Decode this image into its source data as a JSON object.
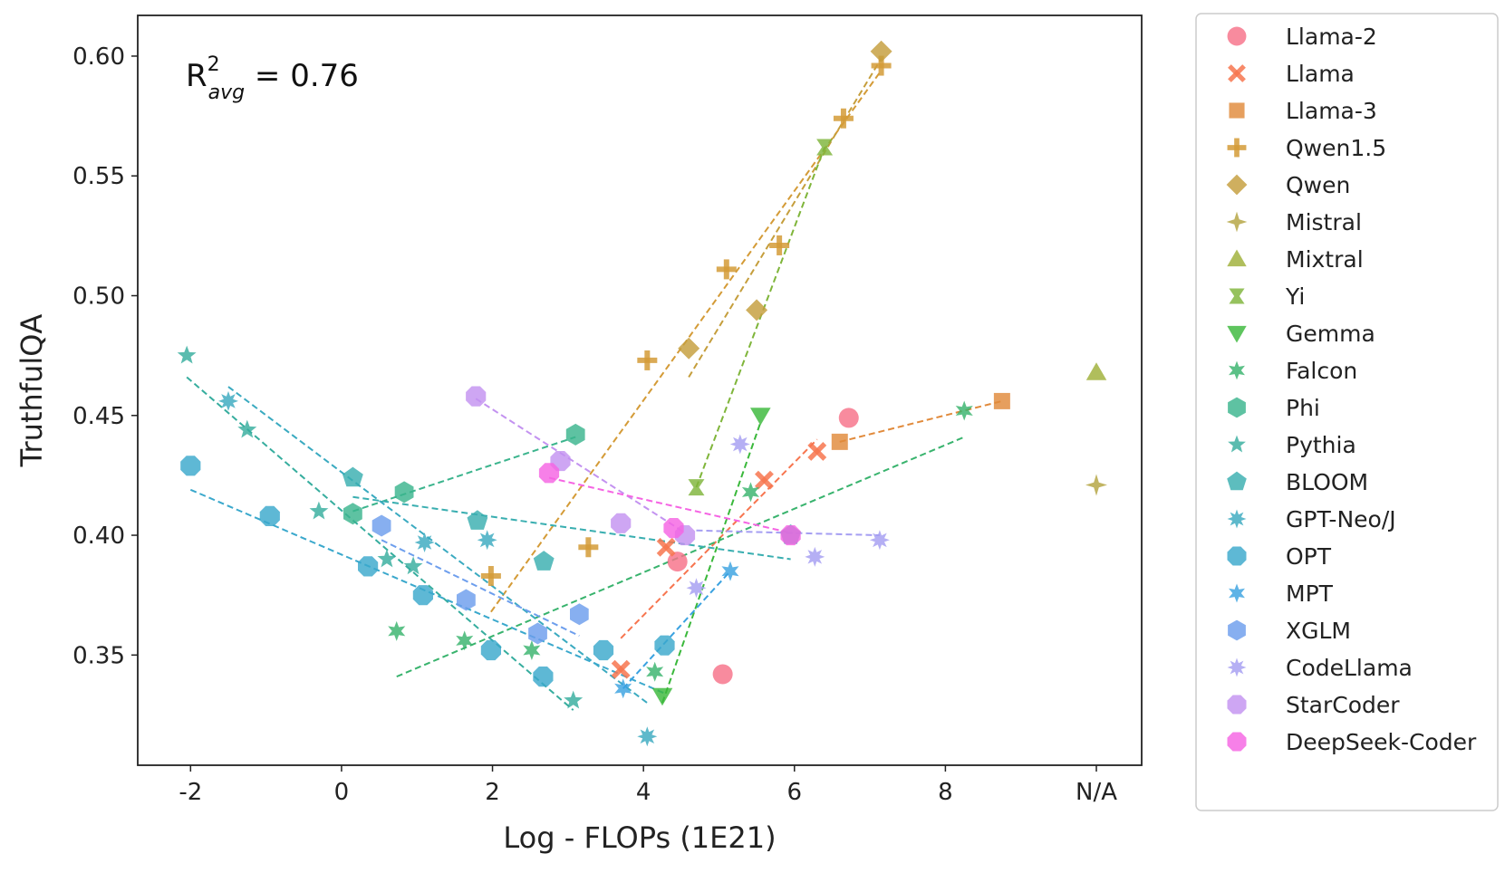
{
  "chart_data": {
    "type": "scatter",
    "title": "",
    "xlabel": "Log - FLOPs (1E21)",
    "ylabel": "TruthfulQA",
    "xlim": [
      -2.7,
      10.6
    ],
    "ylim": [
      0.304,
      0.617
    ],
    "xticks": [
      -2,
      0,
      2,
      4,
      6,
      8,
      10
    ],
    "xtick_labels": [
      "-2",
      "0",
      "2",
      "4",
      "6",
      "8",
      "N/A"
    ],
    "yticks": [
      0.35,
      0.4,
      0.45,
      0.5,
      0.55,
      0.6
    ],
    "ytick_labels": [
      "0.35",
      "0.40",
      "0.45",
      "0.50",
      "0.55",
      "0.60"
    ],
    "annotation": {
      "base": "R",
      "sup": "2",
      "sub": "avg",
      "value": " = 0.76"
    },
    "legend_position": "outside-right",
    "series": [
      {
        "name": "Llama-2",
        "color": "#f77189",
        "marker": "circle",
        "points": [
          [
            4.45,
            0.389
          ],
          [
            5.05,
            0.342
          ],
          [
            6.72,
            0.449
          ]
        ],
        "fit": null
      },
      {
        "name": "Llama",
        "color": "#f7754f",
        "marker": "x",
        "points": [
          [
            3.7,
            0.344
          ],
          [
            4.3,
            0.395
          ],
          [
            5.6,
            0.423
          ],
          [
            6.3,
            0.435
          ]
        ],
        "fit": [
          [
            3.7,
            0.357
          ],
          [
            6.3,
            0.44
          ]
        ]
      },
      {
        "name": "Llama-3",
        "color": "#e18a3b",
        "marker": "square",
        "points": [
          [
            6.6,
            0.439
          ],
          [
            8.75,
            0.456
          ]
        ],
        "fit": [
          [
            6.6,
            0.439
          ],
          [
            8.75,
            0.456
          ]
        ]
      },
      {
        "name": "Qwen1.5",
        "color": "#d49b37",
        "marker": "plus",
        "points": [
          [
            1.98,
            0.383
          ],
          [
            3.27,
            0.395
          ],
          [
            4.05,
            0.473
          ],
          [
            5.1,
            0.511
          ],
          [
            5.8,
            0.521
          ],
          [
            6.65,
            0.574
          ],
          [
            7.15,
            0.596
          ]
        ],
        "fit": [
          [
            1.98,
            0.368
          ],
          [
            7.15,
            0.594
          ]
        ]
      },
      {
        "name": "Qwen",
        "color": "#c59e3c",
        "marker": "diamond",
        "points": [
          [
            4.6,
            0.478
          ],
          [
            5.5,
            0.494
          ],
          [
            7.15,
            0.602
          ]
        ],
        "fit": [
          [
            4.6,
            0.466
          ],
          [
            7.15,
            0.599
          ]
        ]
      },
      {
        "name": "Mistral",
        "color": "#b3a43f",
        "marker": "star4",
        "points": [
          [
            10.0,
            0.421
          ]
        ],
        "fit": null
      },
      {
        "name": "Mixtral",
        "color": "#9fb038",
        "marker": "triangle",
        "points": [
          [
            10.0,
            0.468
          ]
        ],
        "fit": null
      },
      {
        "name": "Yi",
        "color": "#7fb53a",
        "marker": "bowtie",
        "points": [
          [
            4.7,
            0.42
          ],
          [
            6.4,
            0.562
          ]
        ],
        "fit": [
          [
            4.7,
            0.42
          ],
          [
            6.4,
            0.562
          ]
        ]
      },
      {
        "name": "Gemma",
        "color": "#3ab83b",
        "marker": "triangle-down",
        "points": [
          [
            4.25,
            0.333
          ],
          [
            5.55,
            0.45
          ]
        ],
        "fit": [
          [
            4.25,
            0.33
          ],
          [
            5.55,
            0.447
          ]
        ]
      },
      {
        "name": "Falcon",
        "color": "#38b36d",
        "marker": "star6",
        "points": [
          [
            0.73,
            0.36
          ],
          [
            1.63,
            0.356
          ],
          [
            2.52,
            0.352
          ],
          [
            4.15,
            0.343
          ],
          [
            5.42,
            0.418
          ],
          [
            8.25,
            0.452
          ]
        ],
        "fit": [
          [
            0.73,
            0.341
          ],
          [
            8.25,
            0.441
          ]
        ]
      },
      {
        "name": "Phi",
        "color": "#3bb48d",
        "marker": "hexagon",
        "points": [
          [
            0.15,
            0.409
          ],
          [
            0.83,
            0.418
          ],
          [
            3.1,
            0.442
          ]
        ],
        "fit": [
          [
            0.15,
            0.41
          ],
          [
            3.1,
            0.441
          ]
        ]
      },
      {
        "name": "Pythia",
        "color": "#36ad9e",
        "marker": "star5",
        "points": [
          [
            -2.05,
            0.475
          ],
          [
            -1.25,
            0.444
          ],
          [
            -0.3,
            0.41
          ],
          [
            0.6,
            0.39
          ],
          [
            0.95,
            0.387
          ],
          [
            3.07,
            0.331
          ]
        ],
        "fit": [
          [
            -2.05,
            0.466
          ],
          [
            3.07,
            0.327
          ]
        ]
      },
      {
        "name": "BLOOM",
        "color": "#39aeb0",
        "marker": "pentagon",
        "points": [
          [
            0.15,
            0.424
          ],
          [
            1.8,
            0.406
          ],
          [
            2.68,
            0.389
          ],
          [
            5.95,
            0.4
          ]
        ],
        "fit": [
          [
            0.15,
            0.416
          ],
          [
            5.95,
            0.39
          ]
        ]
      },
      {
        "name": "GPT-Neo/J",
        "color": "#3aaac0",
        "marker": "star8",
        "points": [
          [
            -1.5,
            0.456
          ],
          [
            1.1,
            0.397
          ],
          [
            1.93,
            0.398
          ],
          [
            4.05,
            0.316
          ]
        ],
        "fit": [
          [
            -1.5,
            0.462
          ],
          [
            4.05,
            0.33
          ]
        ]
      },
      {
        "name": "OPT",
        "color": "#3aa8cc",
        "marker": "octagon",
        "points": [
          [
            -2.0,
            0.429
          ],
          [
            -0.95,
            0.408
          ],
          [
            0.35,
            0.387
          ],
          [
            1.08,
            0.375
          ],
          [
            1.98,
            0.352
          ],
          [
            2.67,
            0.341
          ],
          [
            3.47,
            0.352
          ],
          [
            4.28,
            0.354
          ]
        ],
        "fit": [
          [
            -2.0,
            0.419
          ],
          [
            4.28,
            0.334
          ]
        ]
      },
      {
        "name": "MPT",
        "color": "#3aa2e0",
        "marker": "star6",
        "points": [
          [
            3.73,
            0.336
          ],
          [
            5.15,
            0.385
          ]
        ],
        "fit": [
          [
            3.73,
            0.336
          ],
          [
            5.15,
            0.385
          ]
        ]
      },
      {
        "name": "XGLM",
        "color": "#6d9eed",
        "marker": "hexagon",
        "points": [
          [
            0.53,
            0.404
          ],
          [
            1.65,
            0.373
          ],
          [
            2.6,
            0.359
          ],
          [
            3.15,
            0.367
          ]
        ],
        "fit": [
          [
            0.53,
            0.398
          ],
          [
            3.15,
            0.358
          ]
        ]
      },
      {
        "name": "CodeLlama",
        "color": "#a59ef2",
        "marker": "star8",
        "points": [
          [
            4.7,
            0.378
          ],
          [
            5.28,
            0.438
          ],
          [
            6.27,
            0.391
          ],
          [
            7.13,
            0.398
          ]
        ],
        "fit": null
      },
      {
        "name": "StarCoder",
        "color": "#c392f0",
        "marker": "octagon",
        "points": [
          [
            1.78,
            0.458
          ],
          [
            2.9,
            0.431
          ],
          [
            3.7,
            0.405
          ],
          [
            4.55,
            0.4
          ]
        ],
        "fit": [
          [
            1.78,
            0.457
          ],
          [
            4.55,
            0.401
          ]
        ]
      },
      {
        "name": "DeepSeek-Coder",
        "color": "#f564e3",
        "marker": "octagon",
        "points": [
          [
            2.75,
            0.426
          ],
          [
            4.4,
            0.403
          ],
          [
            5.95,
            0.4
          ]
        ],
        "fit": [
          [
            2.75,
            0.424
          ],
          [
            5.95,
            0.401
          ]
        ]
      }
    ],
    "extra_lines": [
      {
        "color": "#a59ef2",
        "points": [
          [
            4.7,
            0.402
          ],
          [
            7.13,
            0.4
          ]
        ]
      }
    ]
  }
}
